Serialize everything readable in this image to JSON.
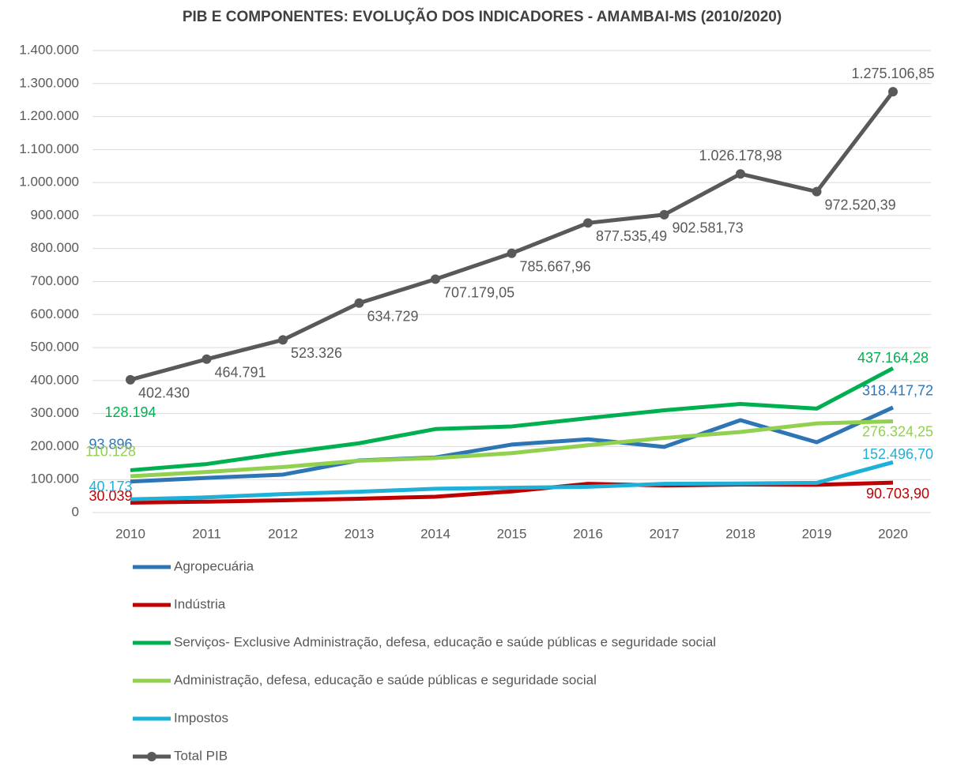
{
  "chart_data": {
    "type": "line",
    "title": "PIB  E COMPONENTES: EVOLUÇÃO DOS INDICADORES - AMAMBAI-MS (2010/2020)",
    "categories": [
      "2010",
      "2011",
      "2012",
      "2013",
      "2014",
      "2015",
      "2016",
      "2017",
      "2018",
      "2019",
      "2020"
    ],
    "ylim": [
      0,
      1400000
    ],
    "yticks": [
      0,
      {
        "value": 100000,
        "label": "100.000"
      },
      {
        "value": 200000,
        "label": "200.000"
      },
      {
        "value": 300000,
        "label": "300.000"
      },
      {
        "value": 400000,
        "label": "400.000"
      },
      {
        "value": 500000,
        "label": "500.000"
      },
      {
        "value": 600000,
        "label": "600.000"
      },
      {
        "value": 700000,
        "label": "700.000"
      },
      {
        "value": 800000,
        "label": "800.000"
      },
      {
        "value": 900000,
        "label": "900.000"
      },
      {
        "value": 1000000,
        "label": "1.000.000"
      },
      {
        "value": 1100000,
        "label": "1.100.000"
      },
      {
        "value": 1200000,
        "label": "1.200.000"
      },
      {
        "value": 1300000,
        "label": "1.300.000"
      },
      {
        "value": 1400000,
        "label": "1.400.000"
      }
    ],
    "grid": true,
    "legend": "bottom",
    "series": [
      {
        "name": "Agropecuária",
        "color": "#2e75b6",
        "values": [
          93896,
          105000,
          115000,
          158000,
          167000,
          206000,
          222000,
          199000,
          280000,
          213000,
          318417.72
        ],
        "value_labels": [
          "93.896",
          null,
          null,
          null,
          null,
          null,
          null,
          null,
          null,
          null,
          "318.417,72"
        ]
      },
      {
        "name": "Indústria",
        "color": "#c00000",
        "values": [
          30039,
          33000,
          37000,
          42000,
          48000,
          64000,
          87000,
          82000,
          85000,
          84000,
          90703.9
        ],
        "value_labels": [
          "30.039",
          null,
          null,
          null,
          null,
          null,
          null,
          null,
          null,
          null,
          "90.703,90"
        ]
      },
      {
        "name": "Serviços- Exclusive Administração, defesa, educação e saúde públicas e seguridade social",
        "color": "#00b050",
        "values": [
          128194,
          147000,
          180000,
          210000,
          253000,
          261000,
          286000,
          310000,
          329000,
          315000,
          437164.28
        ],
        "value_labels": [
          "128.194",
          null,
          null,
          null,
          null,
          null,
          null,
          null,
          null,
          null,
          "437.164,28"
        ]
      },
      {
        "name": "Administração, defesa, educação e saúde públicas e seguridade social",
        "color": "#92d050",
        "values": [
          110128,
          123000,
          138000,
          157000,
          165000,
          180000,
          204000,
          226000,
          244000,
          270000,
          276324.25
        ],
        "value_labels": [
          "110.128",
          null,
          null,
          null,
          null,
          null,
          null,
          null,
          null,
          null,
          "276.324,25"
        ]
      },
      {
        "name": "Impostos",
        "color": "#1fb0d8",
        "values": [
          40173,
          46000,
          56000,
          63000,
          72000,
          75000,
          78000,
          87000,
          88000,
          90000,
          152496.7
        ],
        "value_labels": [
          "40.173",
          null,
          null,
          null,
          null,
          null,
          null,
          null,
          null,
          null,
          "152.496,70"
        ]
      },
      {
        "name": "Total PIB",
        "color": "#595959",
        "markers": true,
        "values": [
          402430,
          464791,
          523326,
          634729,
          707179.05,
          785667.96,
          877535.49,
          902581.73,
          1026178.98,
          972520.39,
          1275106.85
        ],
        "value_labels": [
          "402.430",
          "464.791",
          "523.326",
          "634.729",
          "707.179,05",
          "785.667,96",
          "877.535,49",
          "902.581,73",
          "1.026.178,98",
          "972.520,39",
          "1.275.106,85"
        ]
      }
    ]
  }
}
